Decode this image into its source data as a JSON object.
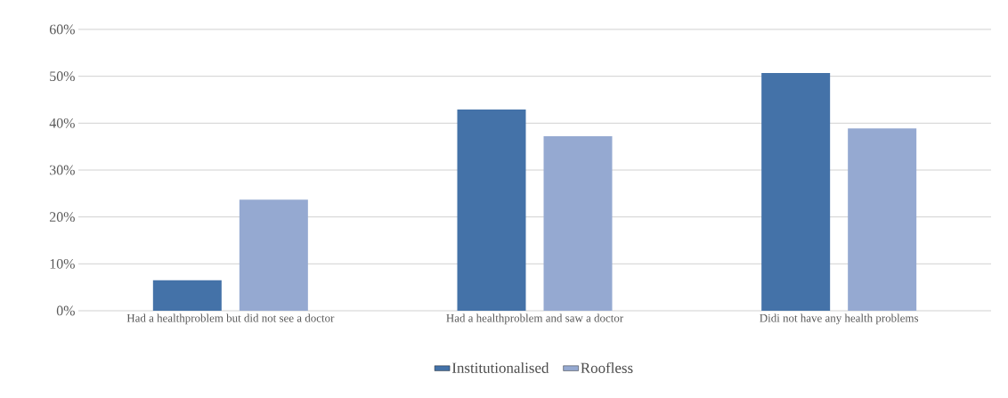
{
  "chart_data": {
    "type": "bar",
    "categories": [
      "Had a healthproblem but did not see a doctor",
      "Had a healthproblem and saw a doctor",
      "Didi not have any health problems"
    ],
    "series": [
      {
        "name": "Institutionalised",
        "color": "#4472a8",
        "values": [
          6.5,
          42.9,
          50.7
        ]
      },
      {
        "name": "Roofless",
        "color": "#95a9d1",
        "values": [
          23.7,
          37.2,
          38.9
        ]
      }
    ],
    "ylim": [
      0,
      60
    ],
    "yticks": [
      {
        "value": 0,
        "label": "0%"
      },
      {
        "value": 10,
        "label": "10%"
      },
      {
        "value": 20,
        "label": "20%"
      },
      {
        "value": 30,
        "label": "30%"
      },
      {
        "value": 40,
        "label": "40%"
      },
      {
        "value": 50,
        "label": "50%"
      },
      {
        "value": 60,
        "label": "60%"
      }
    ],
    "grid": "y",
    "legend": "bottom"
  }
}
